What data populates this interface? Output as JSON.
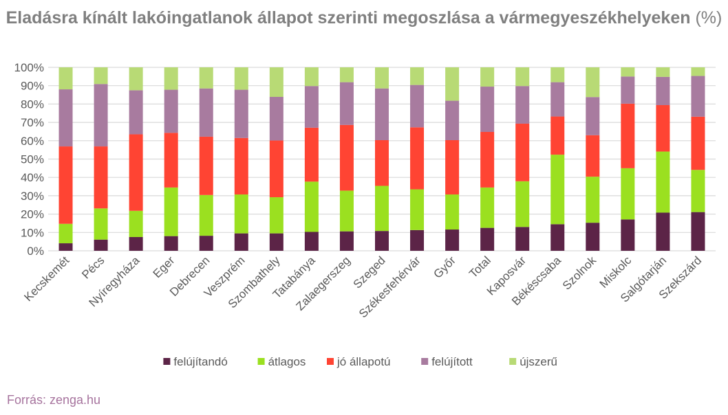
{
  "title": "Eladásra kínált lakóingatlanok állapot szerinti megoszlása a vármegyeszékhelyeken",
  "title_unit": "(%)",
  "source": "Forrás: zenga.hu",
  "chart_data": {
    "type": "bar",
    "stacked": true,
    "percent_stacked": true,
    "title": "Eladásra kínált lakóingatlanok állapot szerinti megoszlása a vármegyeszékhelyeken (%)",
    "categories": [
      "Kecskemét",
      "Pécs",
      "Nyíregyháza",
      "Eger",
      "Debrecen",
      "Veszprém",
      "Szombathely",
      "Tatabánya",
      "Zalaegerszeg",
      "Szeged",
      "Székesfehérvár",
      "Győr",
      "Total",
      "Kaposvár",
      "Békéscsaba",
      "Szolnok",
      "Miskolc",
      "Salgótarján",
      "Szekszárd"
    ],
    "yticks": [
      "0%",
      "10%",
      "20%",
      "30%",
      "40%",
      "50%",
      "60%",
      "70%",
      "80%",
      "90%",
      "100%"
    ],
    "ylim": [
      0,
      100
    ],
    "grid": true,
    "legend_position": "bottom",
    "series": [
      {
        "name": "felújítandó",
        "color": "#5c2447",
        "values": [
          4.1,
          6.1,
          7.5,
          8.0,
          8.2,
          9.5,
          9.5,
          10.3,
          10.6,
          10.8,
          11.3,
          11.6,
          12.5,
          13.0,
          14.5,
          15.3,
          17.1,
          20.8,
          21.1
        ]
      },
      {
        "name": "átlagos",
        "color": "#9be020",
        "values": [
          10.6,
          17.0,
          14.3,
          26.5,
          22.2,
          21.2,
          19.7,
          27.4,
          22.2,
          24.6,
          22.2,
          19.1,
          22.0,
          24.9,
          37.9,
          25.1,
          27.9,
          33.3,
          23.0
        ]
      },
      {
        "name": "jó állapotú",
        "color": "#ff4433",
        "values": [
          42.2,
          33.8,
          41.7,
          29.8,
          31.8,
          30.8,
          30.9,
          29.4,
          35.8,
          24.9,
          33.8,
          29.6,
          30.3,
          31.4,
          20.8,
          22.6,
          35.2,
          25.3,
          29.0
        ]
      },
      {
        "name": "felújított",
        "color": "#a87b9f",
        "values": [
          31.1,
          34.0,
          24.0,
          23.5,
          26.3,
          26.3,
          23.8,
          22.7,
          23.3,
          28.2,
          23.1,
          21.5,
          24.7,
          20.5,
          18.7,
          20.8,
          14.8,
          15.4,
          22.2
        ]
      },
      {
        "name": "újszerű",
        "color": "#b8da75",
        "values": [
          12.0,
          9.1,
          12.5,
          12.2,
          11.5,
          12.2,
          16.1,
          10.2,
          8.1,
          11.5,
          9.6,
          18.2,
          10.5,
          10.2,
          8.1,
          16.2,
          5.0,
          5.2,
          4.7
        ]
      }
    ]
  }
}
